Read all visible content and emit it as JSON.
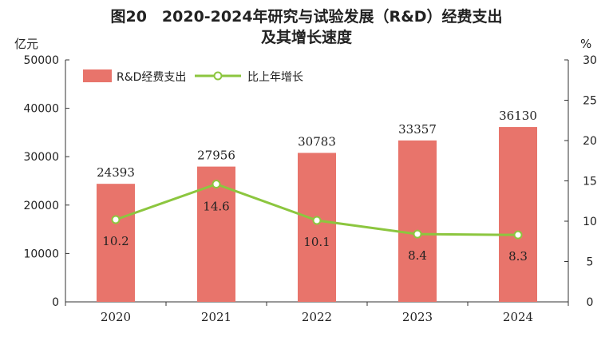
{
  "title_line1": "图20　2020-2024年研究与试验发展（R&D）经费支出",
  "title_line2": "及其增长速度",
  "chart_data": {
    "type": "bar",
    "categories": [
      "2020",
      "2021",
      "2022",
      "2023",
      "2024"
    ],
    "series": [
      {
        "name": "R&D经费支出",
        "type": "bar",
        "axis": "left",
        "values": [
          24393,
          27956,
          30783,
          33357,
          36130
        ],
        "labels": [
          "24393",
          "27956",
          "30783",
          "33357",
          "36130"
        ],
        "color": "#e8746b"
      },
      {
        "name": "比上年增长",
        "type": "line",
        "axis": "right",
        "values": [
          10.2,
          14.6,
          10.1,
          8.4,
          8.3
        ],
        "labels": [
          "10.2",
          "14.6",
          "10.1",
          "8.4",
          "8.3"
        ],
        "color": "#8cc63f"
      }
    ],
    "y_left": {
      "unit": "亿元",
      "ylim": [
        0,
        50000
      ],
      "ticks": [
        "0",
        "10000",
        "20000",
        "30000",
        "40000",
        "50000"
      ]
    },
    "y_right": {
      "unit": "%",
      "ylim": [
        0,
        30
      ],
      "ticks": [
        "0",
        "5",
        "10",
        "15",
        "20",
        "25",
        "30"
      ]
    },
    "legend_position": "top-left",
    "grid": false
  }
}
